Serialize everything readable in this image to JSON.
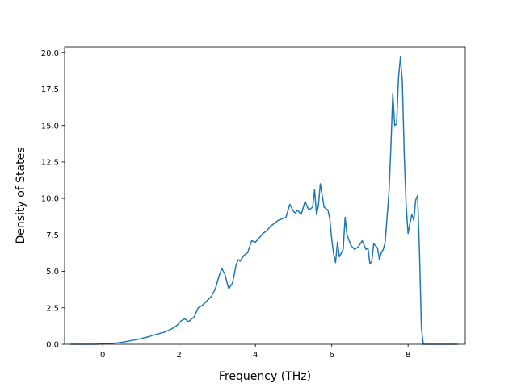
{
  "chart_data": {
    "type": "line",
    "title": "",
    "xlabel": "Frequency (THz)",
    "ylabel": "Density of States",
    "xlim": [
      -1.0,
      9.5
    ],
    "ylim": [
      0,
      20.4
    ],
    "xticks": [
      0,
      2,
      4,
      6,
      8
    ],
    "xtick_labels": [
      "0",
      "2",
      "4",
      "6",
      "8"
    ],
    "yticks": [
      0,
      2.5,
      5,
      7.5,
      10,
      12.5,
      15,
      17.5,
      20
    ],
    "ytick_labels": [
      "0.0",
      "2.5",
      "5.0",
      "7.5",
      "10.0",
      "12.5",
      "15.0",
      "17.5",
      "20.0"
    ],
    "grid": false,
    "line_color": "#1f77b4",
    "series": [
      {
        "x": [
          -0.85,
          -0.2,
          0.0,
          0.2,
          0.4,
          0.6,
          0.8,
          1.0,
          1.2,
          1.4,
          1.6,
          1.8,
          1.95,
          2.05,
          2.15,
          2.25,
          2.4,
          2.5,
          2.6,
          2.7,
          2.85,
          2.95,
          3.05,
          3.12,
          3.2,
          3.3,
          3.4,
          3.5,
          3.55,
          3.6,
          3.7,
          3.8,
          3.9,
          4.0,
          4.1,
          4.2,
          4.3,
          4.4,
          4.5,
          4.6,
          4.7,
          4.8,
          4.9,
          5.0,
          5.05,
          5.1,
          5.2,
          5.3,
          5.4,
          5.5,
          5.55,
          5.6,
          5.65,
          5.7,
          5.8,
          5.9,
          5.95,
          6.0,
          6.05,
          6.1,
          6.15,
          6.2,
          6.3,
          6.35,
          6.4,
          6.5,
          6.6,
          6.7,
          6.8,
          6.85,
          6.9,
          6.95,
          7.0,
          7.05,
          7.1,
          7.2,
          7.25,
          7.3,
          7.35,
          7.4,
          7.5,
          7.55,
          7.6,
          7.65,
          7.7,
          7.75,
          7.8,
          7.85,
          7.9,
          7.95,
          8.0,
          8.05,
          8.1,
          8.15,
          8.2,
          8.25,
          8.3,
          8.35,
          8.4,
          8.45,
          8.5,
          8.7,
          9.3
        ],
        "y": [
          0.0,
          0.0,
          0.02,
          0.05,
          0.1,
          0.18,
          0.28,
          0.38,
          0.52,
          0.68,
          0.82,
          1.05,
          1.3,
          1.6,
          1.75,
          1.55,
          1.9,
          2.5,
          2.65,
          2.9,
          3.3,
          3.8,
          4.7,
          5.2,
          4.8,
          3.8,
          4.2,
          5.5,
          5.8,
          5.7,
          6.1,
          6.3,
          7.1,
          7.0,
          7.3,
          7.6,
          7.8,
          8.1,
          8.3,
          8.5,
          8.6,
          8.7,
          9.6,
          9.1,
          9.0,
          9.2,
          8.9,
          9.8,
          9.2,
          9.4,
          10.6,
          8.9,
          9.5,
          11.0,
          9.4,
          9.2,
          8.6,
          7.2,
          6.2,
          5.6,
          7.0,
          6.0,
          6.5,
          8.7,
          7.5,
          6.8,
          6.5,
          6.7,
          7.1,
          6.8,
          6.5,
          6.6,
          5.5,
          5.7,
          6.9,
          6.6,
          5.8,
          6.3,
          6.5,
          7.0,
          10.4,
          13.5,
          17.2,
          15.0,
          15.1,
          18.3,
          19.7,
          18.0,
          13.0,
          9.5,
          7.6,
          8.3,
          8.9,
          8.5,
          9.9,
          10.2,
          6.3,
          1.1,
          0.0,
          0.0,
          0.0,
          0.0,
          0.0
        ]
      }
    ]
  }
}
